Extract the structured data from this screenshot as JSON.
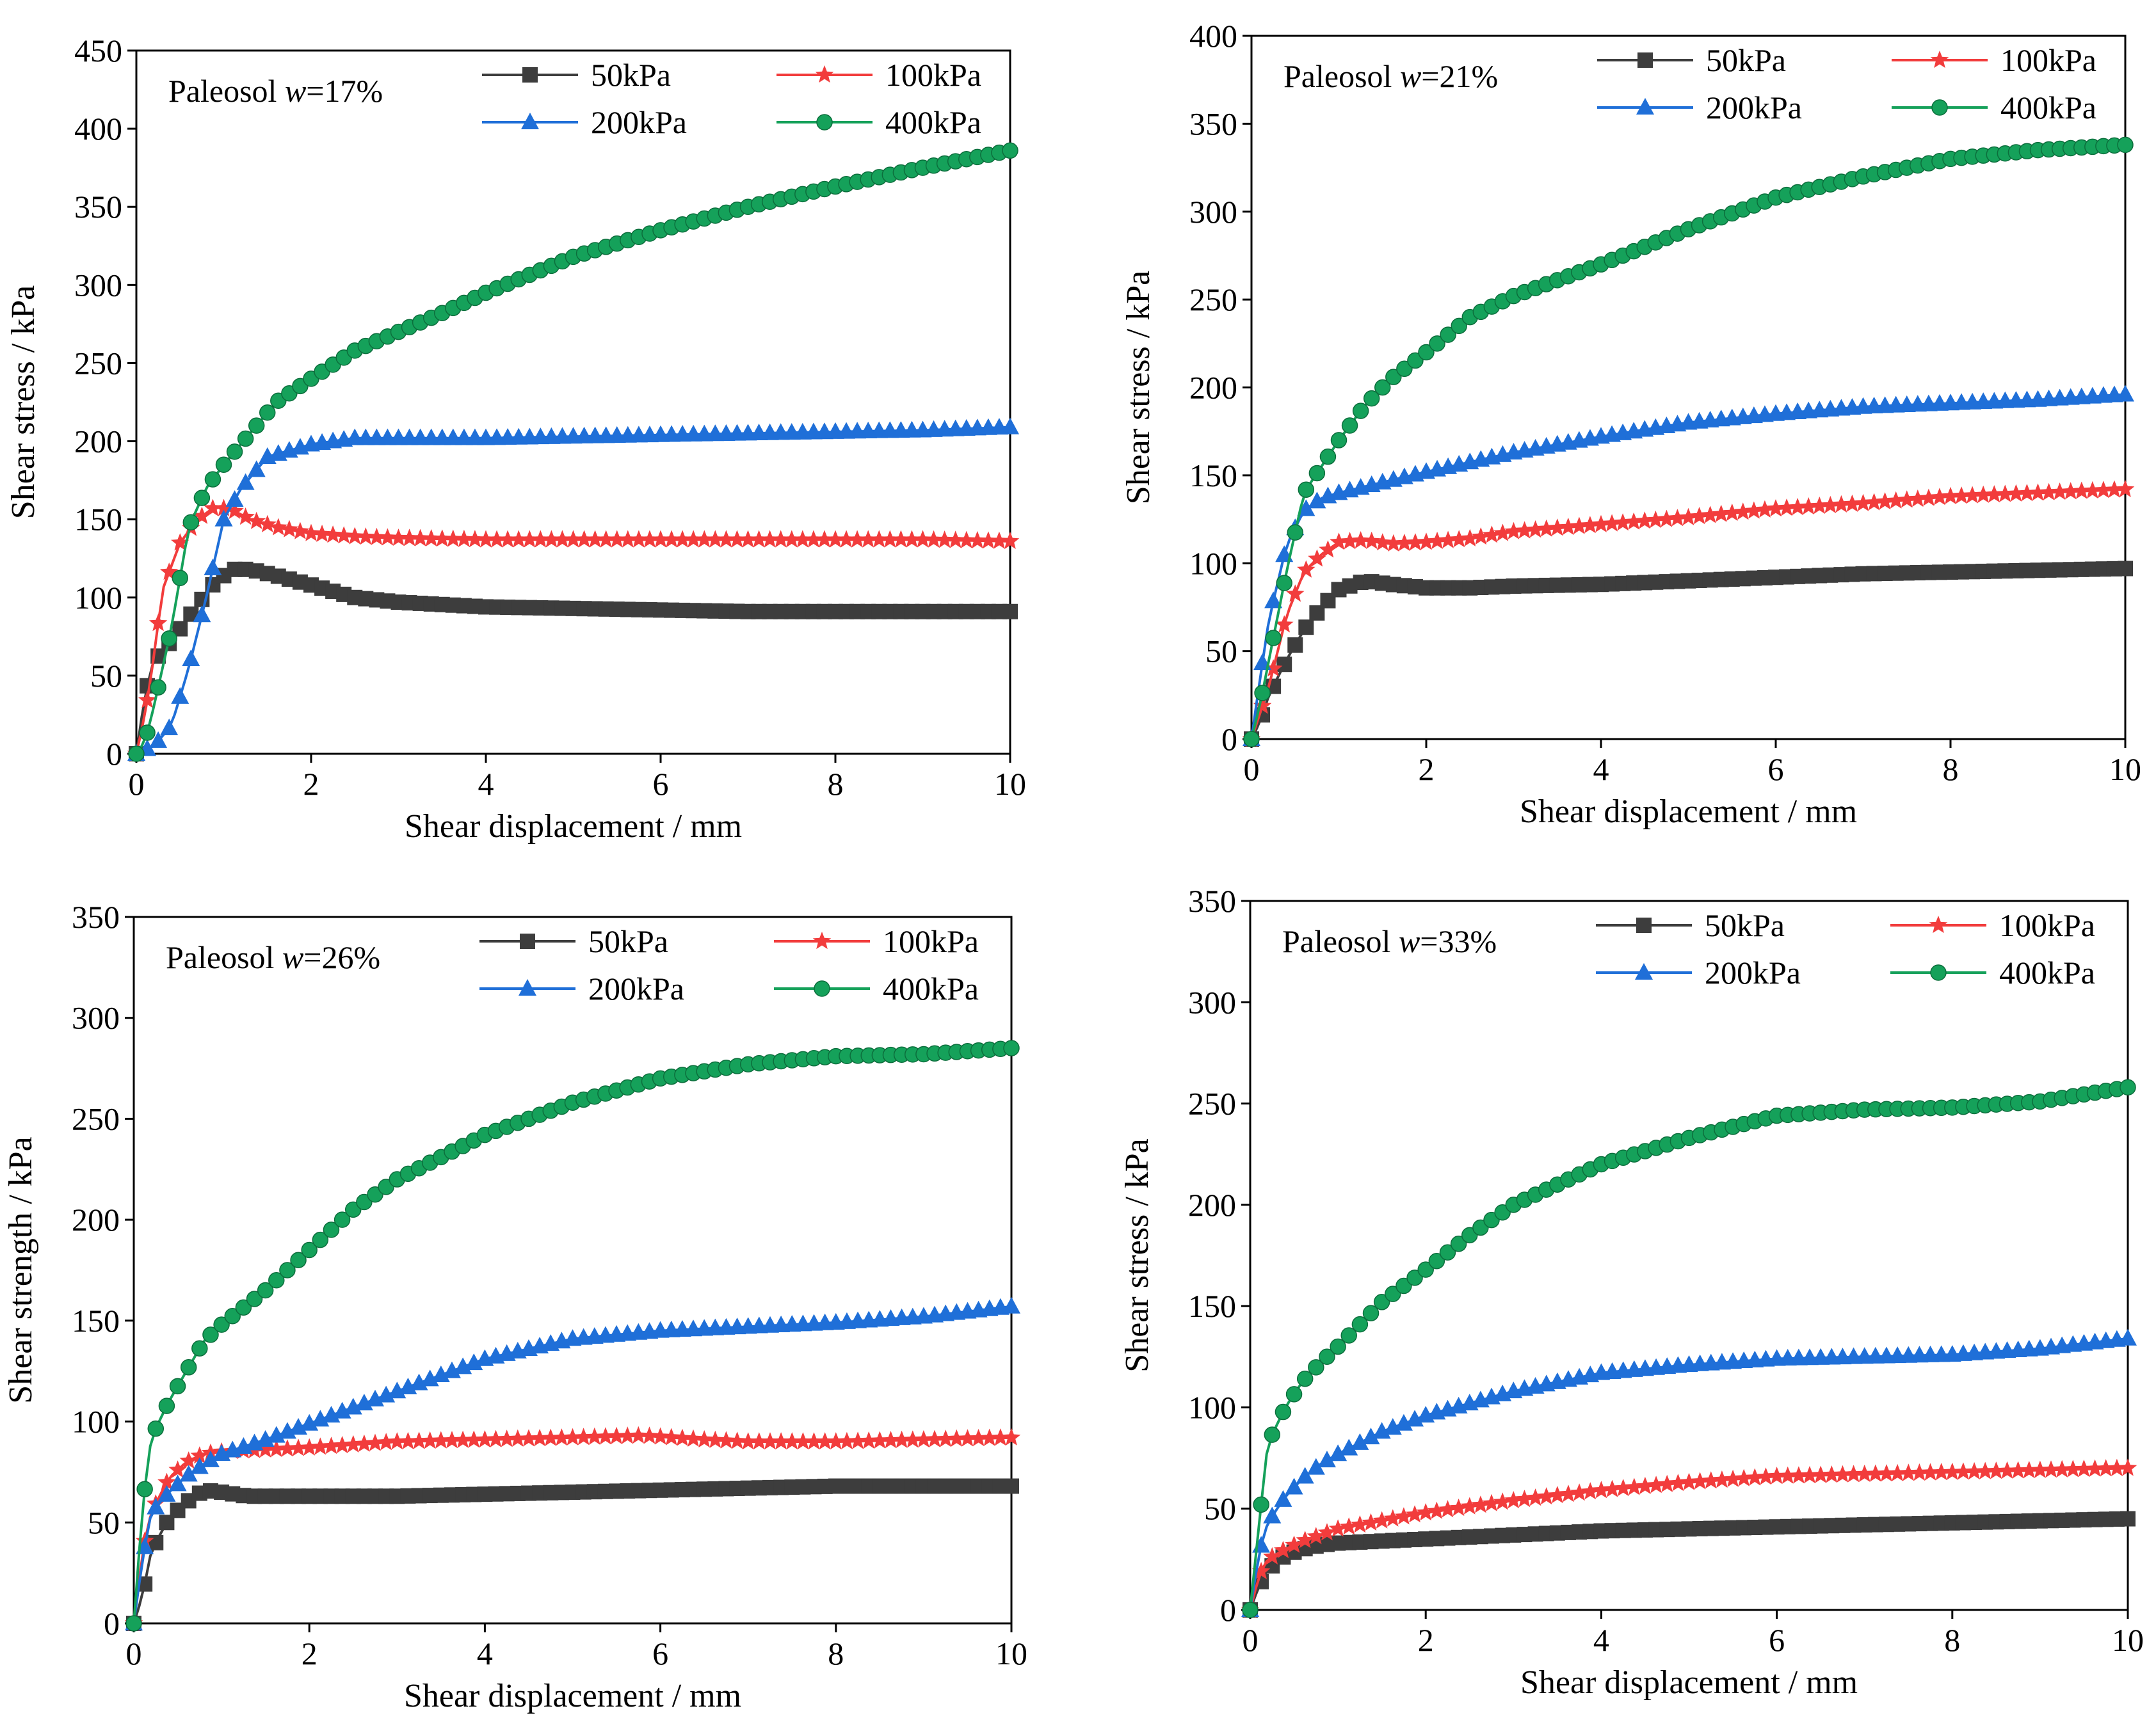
{
  "colors": {
    "s50kPa": "#3d3d3d",
    "s100kPa": "#f23c3c",
    "s200kPa": "#1f6fd8",
    "s400kPa": "#15a15a"
  },
  "chart_data": [
    {
      "type": "line",
      "panel_label": "Paleosol",
      "panel_var": "w",
      "panel_value": "=17%",
      "xlabel": "Shear displacement / mm",
      "ylabel": "Shear stress / kPa",
      "xlim": [
        0,
        10
      ],
      "ylim": [
        0,
        450
      ],
      "xticks": [
        0,
        2,
        4,
        6,
        8,
        10
      ],
      "yticks": [
        0,
        50,
        100,
        150,
        200,
        250,
        300,
        350,
        400,
        450
      ],
      "legend_position": "top",
      "series": [
        {
          "name": "50kPa",
          "marker": "square",
          "color": "#3d3d3d",
          "x": [
            0,
            0.1,
            0.2,
            0.3,
            0.5,
            0.7,
            0.9,
            1.1,
            1.3,
            1.6,
            2.0,
            2.5,
            3,
            4,
            5,
            6,
            7,
            8,
            9,
            10
          ],
          "y": [
            0,
            38,
            60,
            65,
            80,
            95,
            110,
            118,
            118,
            114,
            108,
            100,
            97,
            94,
            93,
            92,
            91,
            91,
            91,
            91
          ]
        },
        {
          "name": "100kPa",
          "marker": "star",
          "color": "#f23c3c",
          "x": [
            0,
            0.1,
            0.2,
            0.3,
            0.5,
            0.7,
            0.9,
            1.1,
            1.3,
            1.6,
            2.0,
            2.5,
            3,
            4,
            5,
            6,
            7,
            8,
            9,
            10
          ],
          "y": [
            0,
            25,
            62,
            105,
            135,
            150,
            158,
            156,
            150,
            145,
            141,
            139,
            138,
            137,
            137,
            137,
            137,
            137,
            137,
            136
          ]
        },
        {
          "name": "200kPa",
          "marker": "triangle",
          "color": "#1f6fd8",
          "x": [
            0,
            0.2,
            0.4,
            0.6,
            0.8,
            1.0,
            1.2,
            1.5,
            2.0,
            2.5,
            3,
            4,
            5,
            6,
            7,
            8,
            9,
            10
          ],
          "y": [
            0,
            5,
            18,
            55,
            100,
            150,
            170,
            190,
            198,
            202,
            202,
            202,
            203,
            204,
            205,
            206,
            207,
            209
          ]
        },
        {
          "name": "400kPa",
          "marker": "circle",
          "color": "#15a15a",
          "x": [
            0,
            0.1,
            0.2,
            0.4,
            0.6,
            0.8,
            1.0,
            1.3,
            1.6,
            2,
            2.5,
            3,
            3.5,
            4,
            5,
            6,
            7,
            8,
            9,
            10
          ],
          "y": [
            0,
            8,
            30,
            80,
            145,
            170,
            185,
            205,
            225,
            240,
            258,
            270,
            282,
            295,
            318,
            335,
            350,
            363,
            375,
            386
          ]
        }
      ]
    },
    {
      "type": "line",
      "panel_label": "Paleosol",
      "panel_var": "w",
      "panel_value": "=21%",
      "xlabel": "Shear displacement / mm",
      "ylabel": "Shear stress / kPa",
      "xlim": [
        0,
        10
      ],
      "ylim": [
        0,
        400
      ],
      "xticks": [
        0,
        2,
        4,
        6,
        8,
        10
      ],
      "yticks": [
        0,
        50,
        100,
        150,
        200,
        250,
        300,
        350,
        400
      ],
      "legend_position": "top",
      "series": [
        {
          "name": "50kPa",
          "marker": "square",
          "color": "#3d3d3d",
          "x": [
            0,
            0.1,
            0.2,
            0.4,
            0.6,
            0.8,
            1.0,
            1.3,
            1.6,
            2,
            2.5,
            3,
            4,
            5,
            6,
            7,
            8,
            9,
            10
          ],
          "y": [
            0,
            10,
            25,
            45,
            62,
            75,
            85,
            90,
            88,
            86,
            86,
            87,
            88,
            90,
            92,
            94,
            95,
            96,
            97
          ]
        },
        {
          "name": "100kPa",
          "marker": "star",
          "color": "#f23c3c",
          "x": [
            0,
            0.1,
            0.2,
            0.4,
            0.6,
            0.8,
            1.0,
            1.3,
            1.6,
            2,
            2.5,
            3,
            4,
            5,
            6,
            7,
            8,
            9,
            10
          ],
          "y": [
            0,
            15,
            30,
            70,
            95,
            105,
            112,
            113,
            111,
            112,
            114,
            118,
            122,
            126,
            131,
            134,
            138,
            140,
            142
          ]
        },
        {
          "name": "200kPa",
          "marker": "triangle",
          "color": "#1f6fd8",
          "x": [
            0,
            0.1,
            0.2,
            0.4,
            0.6,
            0.8,
            1.0,
            1.5,
            2,
            3,
            4,
            5,
            6,
            7,
            8,
            9,
            10
          ],
          "y": [
            0,
            35,
            68,
            110,
            130,
            137,
            140,
            146,
            152,
            163,
            172,
            180,
            185,
            189,
            191,
            193,
            196
          ]
        },
        {
          "name": "400kPa",
          "marker": "circle",
          "color": "#15a15a",
          "x": [
            0,
            0.1,
            0.2,
            0.4,
            0.6,
            0.8,
            1.0,
            1.3,
            1.6,
            2,
            2.5,
            3,
            4,
            5,
            6,
            7,
            8,
            9,
            10
          ],
          "y": [
            0,
            20,
            45,
            95,
            140,
            155,
            170,
            190,
            205,
            220,
            240,
            252,
            270,
            290,
            308,
            320,
            330,
            335,
            338
          ]
        }
      ]
    },
    {
      "type": "line",
      "panel_label": "Paleosol",
      "panel_var": "w",
      "panel_value": "=26%",
      "xlabel": "Shear displacement / mm",
      "ylabel": "Shear strength / kPa",
      "xlim": [
        0,
        10
      ],
      "ylim": [
        0,
        350
      ],
      "xticks": [
        0,
        2,
        4,
        6,
        8,
        10
      ],
      "yticks": [
        0,
        50,
        100,
        150,
        200,
        250,
        300,
        350
      ],
      "legend_position": "top",
      "series": [
        {
          "name": "50kPa",
          "marker": "square",
          "color": "#3d3d3d",
          "x": [
            0,
            0.1,
            0.2,
            0.4,
            0.6,
            0.8,
            1.0,
            1.3,
            1.6,
            2,
            3,
            4,
            5,
            6,
            7,
            8,
            9,
            10
          ],
          "y": [
            0,
            14,
            36,
            52,
            60,
            66,
            65,
            63,
            63,
            63,
            63,
            64,
            65,
            66,
            67,
            68,
            68,
            68
          ]
        },
        {
          "name": "100kPa",
          "marker": "star",
          "color": "#f23c3c",
          "x": [
            0,
            0.1,
            0.2,
            0.4,
            0.6,
            0.8,
            1.0,
            1.5,
            2,
            3,
            4,
            5,
            5.8,
            6.5,
            7,
            8,
            9,
            10
          ],
          "y": [
            0,
            36,
            55,
            72,
            80,
            84,
            85,
            86,
            87,
            90,
            91,
            92,
            93,
            91,
            90,
            90,
            91,
            92
          ]
        },
        {
          "name": "200kPa",
          "marker": "triangle",
          "color": "#1f6fd8",
          "x": [
            0,
            0.1,
            0.2,
            0.4,
            0.6,
            0.8,
            1.0,
            1.5,
            2,
            3,
            4,
            5,
            6,
            7,
            8,
            9,
            10
          ],
          "y": [
            0,
            32,
            55,
            65,
            73,
            79,
            84,
            91,
            99,
            115,
            131,
            141,
            145,
            147,
            149,
            152,
            157
          ]
        },
        {
          "name": "400kPa",
          "marker": "circle",
          "color": "#15a15a",
          "x": [
            0,
            0.1,
            0.2,
            0.4,
            0.6,
            0.8,
            1.0,
            1.5,
            2,
            2.5,
            3,
            4,
            5,
            6,
            7,
            8,
            9,
            10
          ],
          "y": [
            0,
            58,
            92,
            110,
            125,
            140,
            148,
            165,
            185,
            205,
            220,
            242,
            258,
            270,
            277,
            281,
            282,
            285
          ]
        }
      ]
    },
    {
      "type": "line",
      "panel_label": "Paleosol",
      "panel_var": "w",
      "panel_value": "=33%",
      "xlabel": "Shear displacement / mm",
      "ylabel": "Shear stress / kPa",
      "xlim": [
        0,
        10
      ],
      "ylim": [
        0,
        350
      ],
      "xticks": [
        0,
        2,
        4,
        6,
        8,
        10
      ],
      "yticks": [
        0,
        50,
        100,
        150,
        200,
        250,
        300,
        350
      ],
      "legend_position": "top",
      "series": [
        {
          "name": "50kPa",
          "marker": "square",
          "color": "#3d3d3d",
          "x": [
            0,
            0.1,
            0.2,
            0.4,
            0.6,
            0.8,
            1.0,
            1.5,
            2,
            3,
            4,
            5,
            6,
            7,
            8,
            9,
            10
          ],
          "y": [
            0,
            12,
            20,
            27,
            30,
            32,
            33,
            34,
            35,
            37,
            39,
            40,
            41,
            42,
            43,
            44,
            45
          ]
        },
        {
          "name": "100kPa",
          "marker": "star",
          "color": "#f23c3c",
          "x": [
            0,
            0.1,
            0.2,
            0.4,
            0.6,
            0.8,
            1.0,
            1.5,
            2,
            3,
            4,
            5,
            6,
            7,
            8,
            9,
            10
          ],
          "y": [
            0,
            17,
            25,
            30,
            34,
            37,
            40,
            44,
            48,
            54,
            59,
            63,
            66,
            67,
            68,
            69,
            70
          ]
        },
        {
          "name": "200kPa",
          "marker": "triangle",
          "color": "#1f6fd8",
          "x": [
            0,
            0.1,
            0.2,
            0.4,
            0.6,
            0.8,
            1.0,
            1.5,
            2,
            3,
            4,
            5,
            6,
            7,
            8,
            9,
            10
          ],
          "y": [
            0,
            28,
            43,
            56,
            65,
            72,
            77,
            88,
            96,
            108,
            117,
            121,
            124,
            125,
            126,
            129,
            134
          ]
        },
        {
          "name": "400kPa",
          "marker": "circle",
          "color": "#15a15a",
          "x": [
            0,
            0.1,
            0.2,
            0.4,
            0.6,
            0.8,
            1.0,
            1.5,
            2,
            2.5,
            3,
            4,
            5,
            6,
            7,
            8,
            9,
            10
          ],
          "y": [
            0,
            42,
            82,
            100,
            113,
            122,
            130,
            152,
            168,
            185,
            200,
            220,
            233,
            244,
            247,
            248,
            251,
            258
          ]
        }
      ]
    }
  ]
}
